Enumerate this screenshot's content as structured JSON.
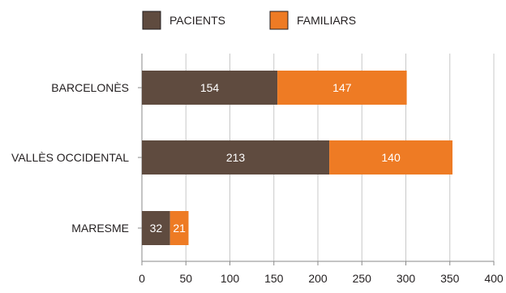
{
  "chart_data": {
    "type": "bar",
    "orientation": "horizontal",
    "stacked": true,
    "categories": [
      "BARCELONÈS",
      "VALLÈS OCCIDENTAL",
      "MARESME"
    ],
    "series": [
      {
        "name": "PACIENTS",
        "color": "#5f4b3f",
        "values": [
          154,
          213,
          32
        ]
      },
      {
        "name": "FAMILIARS",
        "color": "#ee7b24",
        "values": [
          147,
          140,
          21
        ]
      }
    ],
    "xlim": [
      0,
      400
    ],
    "xticks": [
      "0",
      "50",
      "100",
      "150",
      "200",
      "250",
      "300",
      "350",
      "400"
    ],
    "grid": true,
    "legend_position": "top",
    "title": "",
    "xlabel": "",
    "ylabel": ""
  }
}
